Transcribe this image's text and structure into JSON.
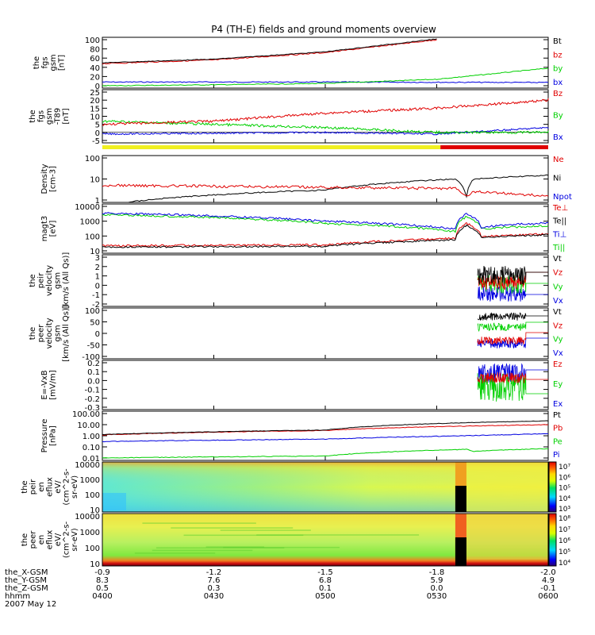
{
  "title": "P4 (TH-E) fields and ground moments overview",
  "date": "2007 May 12",
  "colors": {
    "black": "#000000",
    "red": "#e00000",
    "green": "#00d000",
    "blue": "#0000e0"
  },
  "panels": [
    {
      "id": "fgs",
      "ylabel": [
        "the",
        "fgs",
        "gsm",
        "[nT]"
      ],
      "yticks": [
        "100",
        "80",
        "60",
        "40",
        "20",
        "0"
      ],
      "legend": [
        {
          "text": "Bt",
          "color": "black"
        },
        {
          "text": "bz",
          "color": "red"
        },
        {
          "text": "by",
          "color": "green"
        },
        {
          "text": "bx",
          "color": "blue"
        }
      ]
    },
    {
      "id": "t89",
      "ylabel": [
        "the",
        "fgs",
        "gsm",
        "-T89",
        "[nT]"
      ],
      "yticks": [
        "25",
        "20",
        "15",
        "10",
        "5",
        "0",
        "-5"
      ],
      "legend": [
        {
          "text": "Bz",
          "color": "red"
        },
        {
          "text": "By",
          "color": "green"
        },
        {
          "text": "Bx",
          "color": "blue"
        }
      ]
    },
    {
      "id": "density",
      "ylabel": [
        "Density",
        "[cm-3]"
      ],
      "yticks": [
        "100",
        "10",
        "1"
      ],
      "legend": [
        {
          "text": "Ne",
          "color": "red"
        },
        {
          "text": "Ni",
          "color": "black"
        },
        {
          "text": "Npot",
          "color": "blue"
        }
      ]
    },
    {
      "id": "temp",
      "ylabel": [
        "magt3",
        "[eV]"
      ],
      "yticks": [
        "10000",
        "1000",
        "100",
        "10"
      ],
      "legend": [
        {
          "text": "Te⊥",
          "color": "red"
        },
        {
          "text": "Te||",
          "color": "black"
        },
        {
          "text": "Ti⊥",
          "color": "blue"
        },
        {
          "text": "Ti||",
          "color": "green"
        }
      ]
    },
    {
      "id": "peir_vel",
      "ylabel": [
        "the",
        "peir",
        "velocity",
        "gsm",
        "[km/s (All Qs)]"
      ],
      "yticks": [
        "3",
        "2",
        "1",
        "0",
        "-1",
        "-2"
      ],
      "legend": [
        {
          "text": "Vt",
          "color": "black"
        },
        {
          "text": "Vz",
          "color": "red"
        },
        {
          "text": "Vy",
          "color": "green"
        },
        {
          "text": "Vx",
          "color": "blue"
        }
      ]
    },
    {
      "id": "peer_vel",
      "ylabel": [
        "the",
        "peer",
        "velocity",
        "gsm",
        "[km/s (All Qs)]"
      ],
      "yticks": [
        "100",
        "50",
        "0",
        "-50",
        "-100"
      ],
      "legend": [
        {
          "text": "Vt",
          "color": "black"
        },
        {
          "text": "Vz",
          "color": "red"
        },
        {
          "text": "Vy",
          "color": "green"
        },
        {
          "text": "Vx",
          "color": "blue"
        }
      ]
    },
    {
      "id": "efield",
      "ylabel": [
        "E=-VxB",
        "[mV/m]"
      ],
      "yticks": [
        "0.2",
        "0.1",
        "0.0",
        "-0.1",
        "-0.2",
        "-0.3"
      ],
      "legend": [
        {
          "text": "Ez",
          "color": "red"
        },
        {
          "text": "Ey",
          "color": "green"
        },
        {
          "text": "Ex",
          "color": "blue"
        }
      ]
    },
    {
      "id": "pressure",
      "ylabel": [
        "Pressure",
        "[nPa]"
      ],
      "yticks": [
        "100.00",
        "10.00",
        "1.00",
        "0.10",
        "0.01"
      ],
      "legend": [
        {
          "text": "Pt",
          "color": "black"
        },
        {
          "text": "Pb",
          "color": "red"
        },
        {
          "text": "Pe",
          "color": "green"
        },
        {
          "text": "Pi",
          "color": "blue"
        }
      ]
    },
    {
      "id": "peir_eflux",
      "ylabel": [
        "the",
        "peir",
        "en",
        "eflux",
        "eV/",
        "(cm^2-s-",
        "sr-eV)"
      ],
      "yticks": [
        "10000",
        "1000",
        "100",
        "10"
      ],
      "cbar": [
        "10⁷",
        "10⁶",
        "10⁵",
        "10⁴",
        "10³"
      ]
    },
    {
      "id": "peer_eflux",
      "ylabel": [
        "the",
        "peer",
        "en",
        "eflux",
        "eV/",
        "(cm^2-s-",
        "sr-eV)"
      ],
      "yticks": [
        "10000",
        "1000",
        "100",
        "10"
      ],
      "cbar": [
        "10⁸",
        "10⁷",
        "10⁶",
        "10⁵",
        "10⁴"
      ]
    }
  ],
  "xaxis": {
    "labels": [
      "the_X-GSM",
      "the_Y-GSM",
      "the_Z-GSM",
      "hhmm"
    ],
    "ticks": [
      {
        "x": "-0.9",
        "y": "8.3",
        "z": "0.5",
        "t": "0400"
      },
      {
        "x": "-1.2",
        "y": "7.6",
        "z": "0.3",
        "t": "0430"
      },
      {
        "x": "-1.5",
        "y": "6.8",
        "z": "0.1",
        "t": "0500"
      },
      {
        "x": "-1.8",
        "y": "5.9",
        "z": "0.0",
        "t": "0530"
      },
      {
        "x": "-2.0",
        "y": "4.9",
        "z": "-0.1",
        "t": "0600"
      }
    ]
  },
  "chart_data": {
    "type": "line",
    "title": "P4 (TH-E) fields and ground moments overview",
    "x_range": [
      "0400",
      "0600"
    ],
    "series": [
      {
        "panel": "fgs",
        "name": "Bt",
        "values": [
          [
            0,
            48
          ],
          [
            30,
            56
          ],
          [
            60,
            72
          ],
          [
            90,
            100
          ]
        ]
      },
      {
        "panel": "fgs",
        "name": "bz",
        "values": [
          [
            0,
            48
          ],
          [
            30,
            56
          ],
          [
            60,
            72
          ],
          [
            90,
            100
          ]
        ]
      },
      {
        "panel": "fgs",
        "name": "by",
        "values": [
          [
            0,
            0
          ],
          [
            30,
            2
          ],
          [
            60,
            5
          ],
          [
            90,
            14
          ],
          [
            120,
            38
          ]
        ]
      },
      {
        "panel": "fgs",
        "name": "bx",
        "values": [
          [
            0,
            8
          ],
          [
            60,
            8
          ],
          [
            120,
            7
          ]
        ]
      },
      {
        "panel": "t89",
        "name": "Bz",
        "values": [
          [
            0,
            5
          ],
          [
            30,
            7
          ],
          [
            60,
            12
          ],
          [
            90,
            15
          ],
          [
            120,
            20
          ]
        ]
      },
      {
        "panel": "t89",
        "name": "By",
        "values": [
          [
            0,
            7
          ],
          [
            30,
            5
          ],
          [
            60,
            3
          ],
          [
            90,
            0
          ],
          [
            120,
            0
          ]
        ]
      },
      {
        "panel": "t89",
        "name": "Bx",
        "values": [
          [
            0,
            -1
          ],
          [
            60,
            0
          ],
          [
            90,
            -1
          ],
          [
            120,
            3
          ]
        ]
      },
      {
        "panel": "density",
        "name": "Ne",
        "values": [
          [
            0,
            5
          ],
          [
            60,
            4
          ],
          [
            95,
            3.5
          ],
          [
            98,
            1.5
          ],
          [
            100,
            2.5
          ],
          [
            120,
            1.5
          ]
        ]
      },
      {
        "panel": "density",
        "name": "Ni",
        "values": [
          [
            0,
            0.5
          ],
          [
            60,
            3
          ],
          [
            95,
            10
          ],
          [
            98,
            1.5
          ],
          [
            100,
            10
          ],
          [
            120,
            15
          ]
        ]
      },
      {
        "panel": "temp",
        "name": "Ti⊥",
        "values": [
          [
            0,
            3500
          ],
          [
            60,
            1000
          ],
          [
            95,
            300
          ],
          [
            98,
            3000
          ],
          [
            102,
            400
          ],
          [
            120,
            800
          ]
        ]
      },
      {
        "panel": "temp",
        "name": "Ti||",
        "values": [
          [
            0,
            2800
          ],
          [
            60,
            700
          ],
          [
            95,
            200
          ],
          [
            98,
            2000
          ],
          [
            102,
            300
          ],
          [
            120,
            500
          ]
        ]
      },
      {
        "panel": "temp",
        "name": "Te⊥",
        "values": [
          [
            0,
            22
          ],
          [
            60,
            25
          ],
          [
            95,
            70
          ],
          [
            98,
            700
          ],
          [
            102,
            90
          ],
          [
            120,
            140
          ]
        ]
      },
      {
        "panel": "temp",
        "name": "Te||",
        "values": [
          [
            0,
            18
          ],
          [
            60,
            20
          ],
          [
            95,
            55
          ],
          [
            98,
            500
          ],
          [
            102,
            80
          ],
          [
            120,
            120
          ]
        ]
      },
      {
        "panel": "pressure",
        "name": "Pt",
        "values": [
          [
            0,
            1.2
          ],
          [
            60,
            3
          ],
          [
            120,
            20
          ]
        ]
      },
      {
        "panel": "pressure",
        "name": "Pb",
        "values": [
          [
            0,
            1.2
          ],
          [
            60,
            3
          ],
          [
            120,
            10
          ]
        ]
      },
      {
        "panel": "pressure",
        "name": "Pi",
        "values": [
          [
            0,
            0.3
          ],
          [
            60,
            0.5
          ],
          [
            98,
            1.0
          ],
          [
            120,
            1.5
          ]
        ]
      },
      {
        "panel": "pressure",
        "name": "Pe",
        "values": [
          [
            0,
            0.01
          ],
          [
            60,
            0.015
          ],
          [
            98,
            0.06
          ],
          [
            100,
            0.04
          ],
          [
            120,
            0.07
          ]
        ]
      }
    ]
  }
}
